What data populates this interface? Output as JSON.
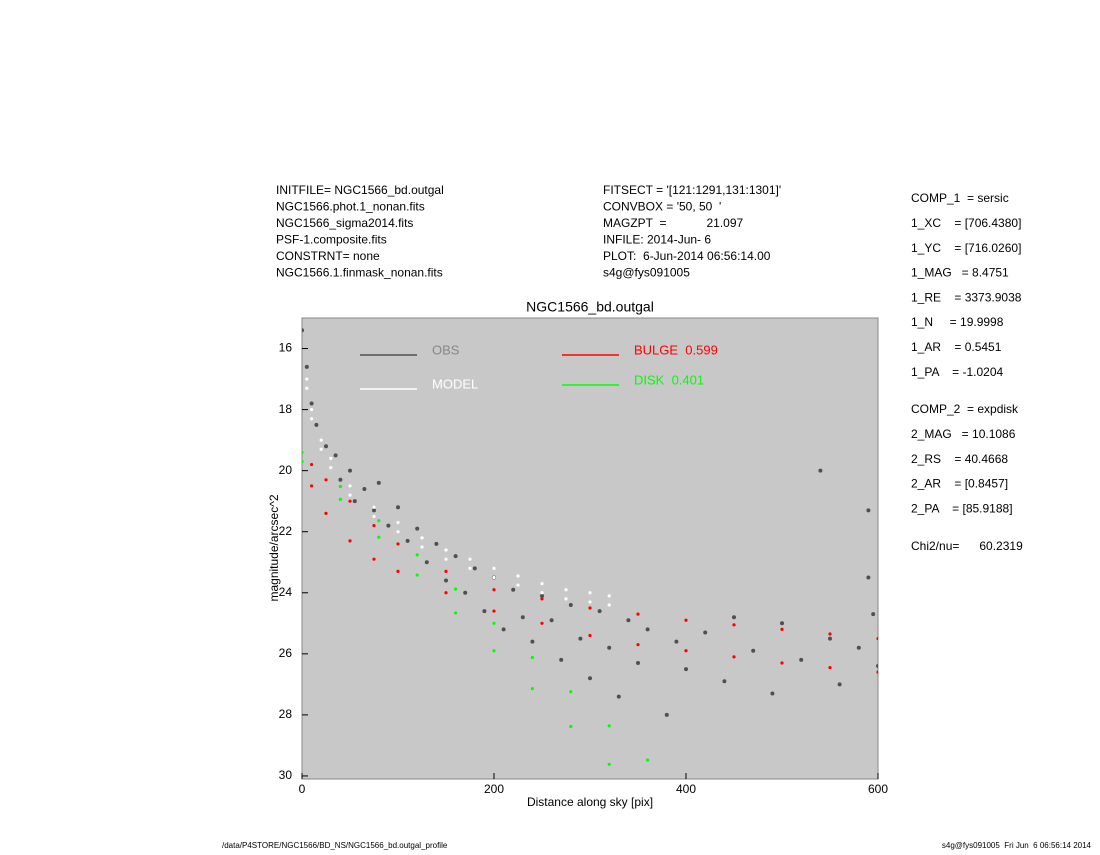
{
  "header": {
    "left": [
      "INITFILE= NGC1566_bd.outgal",
      "NGC1566.phot.1_nonan.fits",
      "NGC1566_sigma2014.fits",
      "PSF-1.composite.fits",
      "CONSTRNT= none",
      "NGC1566.1.finmask_nonan.fits"
    ],
    "middle": [
      "FITSECT = '[121:1291,131:1301]'",
      "CONVBOX = '50, 50  '",
      "MAGZPT  =            21.097",
      "INFILE: 2014-Jun- 6",
      "PLOT:  6-Jun-2014 06:56:14.00",
      "s4g@fys091005"
    ]
  },
  "params": {
    "comp1": [
      "COMP_1  = sersic",
      "1_XC    = [706.4380]",
      "1_YC    = [716.0260]",
      "1_MAG   = 8.4751",
      "1_RE    = 3373.9038",
      "1_N     = 19.9998",
      "1_AR    = 0.5451",
      "1_PA    = -1.0204"
    ],
    "comp2": [
      "COMP_2  = expdisk",
      "2_MAG   = 10.1086",
      "2_RS    = 40.4668",
      "2_AR    = [0.8457]",
      "2_PA    = [85.9188]"
    ],
    "chi": "Chi2/nu=      60.2319"
  },
  "footer": {
    "left": "/data/P4STORE/NGC1566/BD_NS/NGC1566_bd.outgal_profile",
    "right": "s4g@fys091005  Fri Jun  6 06:56:14 2014"
  },
  "chart_data": {
    "type": "scatter",
    "title": "NGC1566_bd.outgal",
    "x_label": "Distance along sky [pix]",
    "y_label": "magnitude/arcsec^2",
    "xlim": [
      0,
      600
    ],
    "xticks": [
      0,
      200,
      400,
      600
    ],
    "ylim": [
      15,
      30.1
    ],
    "yticks": [
      16,
      18,
      20,
      22,
      24,
      26,
      28,
      30
    ],
    "y_inverted": true,
    "background": "#c8c8c8",
    "series": [
      {
        "name": "OBS",
        "color": "#505050",
        "x": [
          0,
          5,
          10,
          15,
          25,
          35,
          40,
          50,
          55,
          65,
          75,
          80,
          90,
          100,
          110,
          120,
          130,
          140,
          150,
          160,
          170,
          180,
          190,
          200,
          210,
          220,
          230,
          240,
          250,
          260,
          270,
          280,
          290,
          300,
          310,
          320,
          330,
          340,
          350,
          360,
          380,
          390,
          400,
          420,
          440,
          450,
          470,
          490,
          500,
          520,
          540,
          550,
          560,
          580,
          590,
          595,
          600,
          590
        ],
        "values": [
          15.4,
          16.6,
          17.8,
          18.5,
          19.2,
          19.5,
          20.3,
          20.0,
          21.0,
          20.6,
          21.3,
          20.4,
          21.8,
          21.2,
          22.3,
          21.9,
          23.0,
          22.4,
          23.6,
          22.8,
          24.0,
          23.2,
          24.6,
          23.5,
          25.2,
          23.9,
          24.8,
          25.6,
          24.1,
          24.9,
          26.2,
          24.4,
          25.5,
          26.8,
          24.6,
          25.8,
          27.4,
          24.9,
          26.3,
          25.2,
          28.0,
          25.6,
          26.5,
          25.3,
          26.9,
          24.8,
          25.9,
          27.3,
          25.0,
          26.2,
          20.0,
          25.5,
          27.0,
          25.8,
          21.3,
          24.7,
          26.4,
          23.5
        ]
      },
      {
        "name": "MODEL",
        "color": "#ffffff",
        "x": [
          5,
          10,
          20,
          30,
          50,
          75,
          100,
          125,
          150,
          175,
          200,
          225,
          250,
          275,
          300,
          320,
          5,
          10,
          20,
          30,
          50,
          75,
          100,
          125,
          150,
          175,
          200,
          225,
          250,
          275,
          300,
          320
        ],
        "values": [
          17.0,
          18.0,
          19.0,
          19.6,
          20.5,
          21.2,
          21.7,
          22.2,
          22.6,
          22.9,
          23.2,
          23.45,
          23.7,
          23.9,
          24.0,
          24.1,
          17.3,
          18.3,
          19.3,
          19.9,
          20.8,
          21.5,
          22.0,
          22.5,
          22.9,
          23.2,
          23.5,
          23.75,
          24.0,
          24.2,
          24.3,
          24.4
        ]
      },
      {
        "name": "BULGE  0.599",
        "color": "#ff0000",
        "x": [
          10,
          25,
          50,
          75,
          100,
          150,
          200,
          250,
          300,
          350,
          400,
          450,
          500,
          550,
          600,
          10,
          25,
          50,
          75,
          100,
          150,
          200,
          250,
          300,
          350,
          400,
          450,
          500,
          550,
          600
        ],
        "values": [
          19.8,
          20.3,
          21.0,
          21.8,
          22.4,
          23.3,
          23.9,
          24.2,
          24.5,
          24.7,
          24.9,
          25.05,
          25.2,
          25.35,
          25.5,
          20.5,
          21.4,
          22.3,
          22.9,
          23.3,
          24.0,
          24.6,
          25.0,
          25.4,
          25.7,
          25.9,
          26.1,
          26.3,
          26.45,
          26.6
        ]
      },
      {
        "name": "DISK  0.401",
        "color": "#00ff00",
        "x": [
          0,
          40,
          80,
          120,
          160,
          200,
          240,
          280,
          320,
          360,
          0,
          40,
          80,
          120,
          160,
          200,
          240,
          280,
          320
        ],
        "values": [
          19.4,
          20.52,
          21.64,
          22.76,
          23.88,
          25.0,
          26.12,
          27.24,
          28.36,
          29.48,
          19.7,
          20.94,
          22.18,
          23.42,
          24.66,
          25.9,
          27.14,
          28.38,
          29.62
        ]
      }
    ]
  }
}
